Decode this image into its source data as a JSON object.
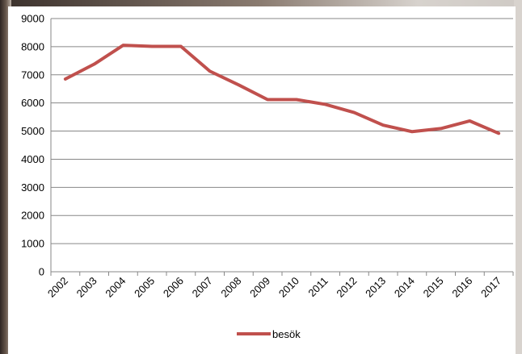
{
  "chart_data": {
    "type": "line",
    "title": "",
    "xlabel": "",
    "ylabel": "",
    "categories": [
      "2002",
      "2003",
      "2004",
      "2005",
      "2006",
      "2007",
      "2008",
      "2009",
      "2010",
      "2011",
      "2012",
      "2013",
      "2014",
      "2015",
      "2016",
      "2017"
    ],
    "series": [
      {
        "name": "besök",
        "color": "#c0504d",
        "values": [
          6850,
          7380,
          8050,
          8010,
          8010,
          7130,
          6640,
          6120,
          6120,
          5950,
          5660,
          5210,
          4980,
          5090,
          5360,
          4920
        ]
      }
    ],
    "ylim": [
      0,
      9000
    ],
    "yticks": [
      0,
      1000,
      2000,
      3000,
      4000,
      5000,
      6000,
      7000,
      8000,
      9000
    ],
    "grid": true,
    "legend": "bottom"
  },
  "colors": {
    "background": "#ffffff",
    "gridline": "#878787",
    "axis": "#878787",
    "photo_edge": "#6a5a4f"
  }
}
